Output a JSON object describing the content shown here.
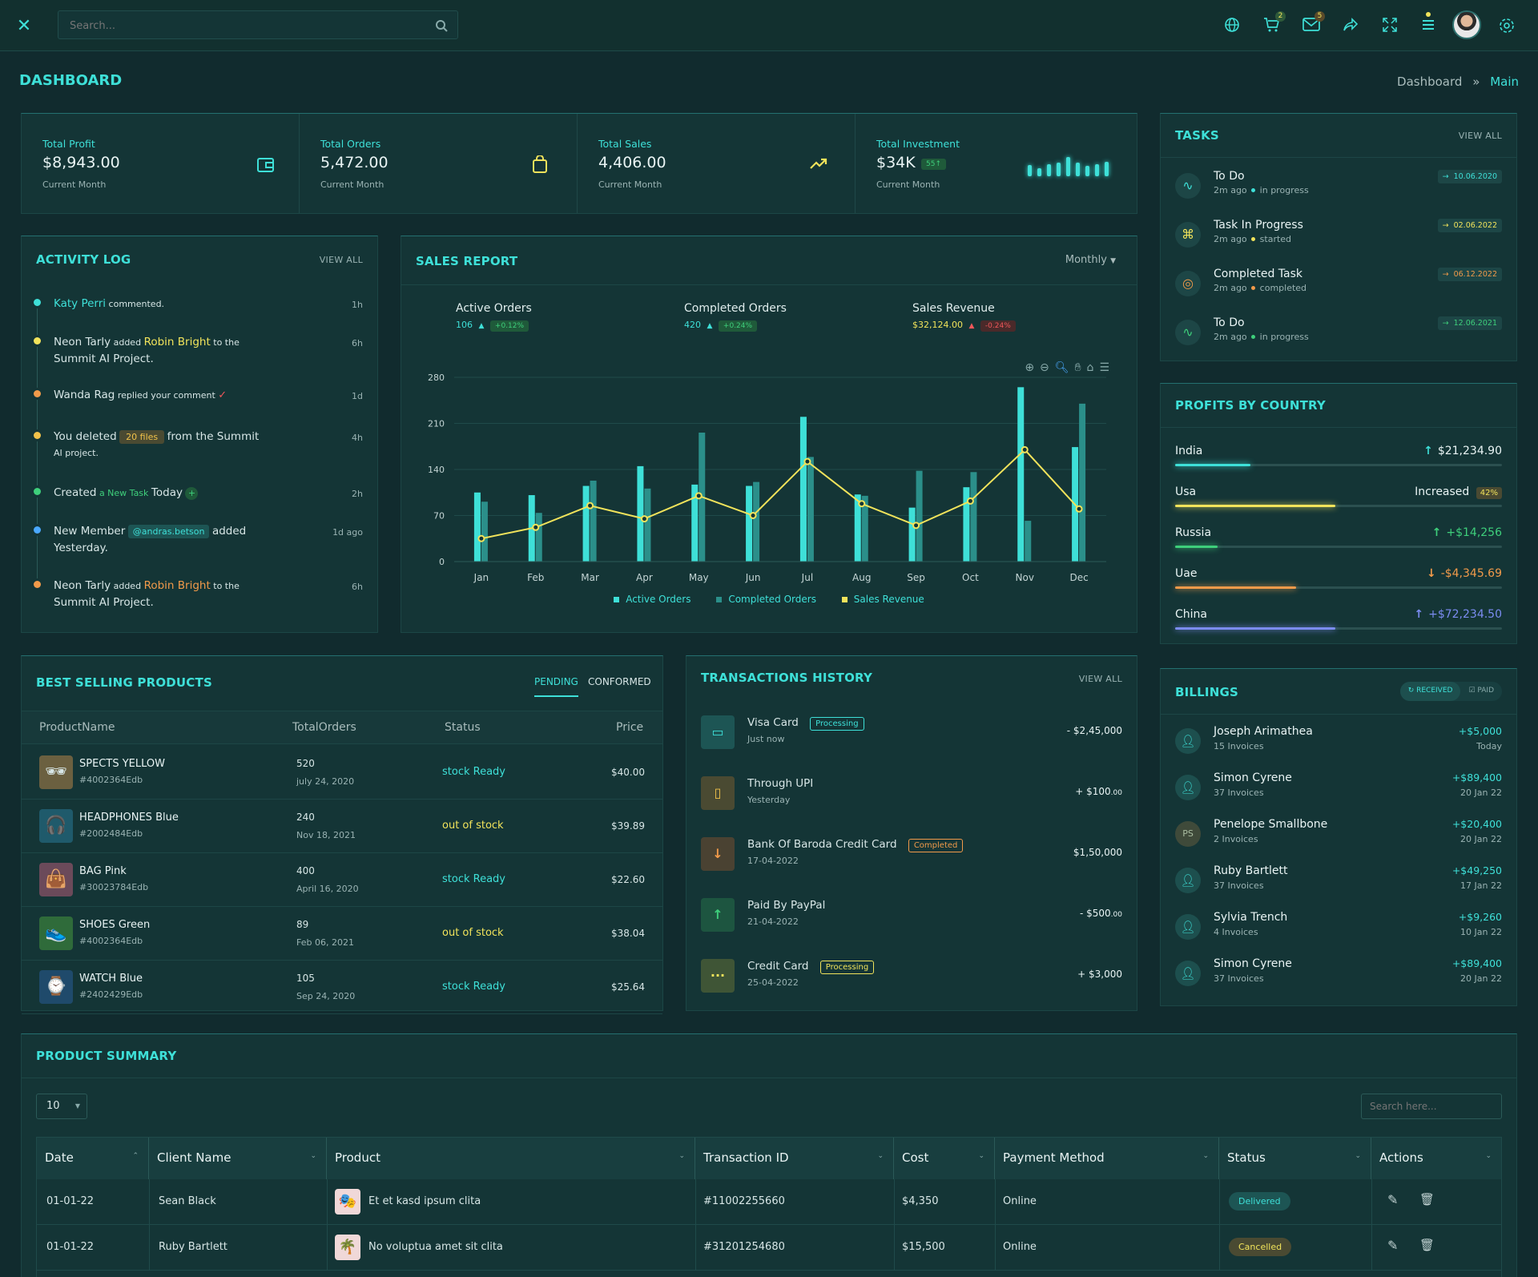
{
  "topbar": {
    "search_placeholder": "Search...",
    "cart_count": "2",
    "mail_count": "5"
  },
  "page": {
    "title": "DASHBOARD",
    "breadcrumb": [
      "Dashboard",
      "Main"
    ]
  },
  "stats": [
    {
      "label": "Total Profit",
      "value": "$8,943.00",
      "sub": "Current Month",
      "icon": "wallet-icon"
    },
    {
      "label": "Total Orders",
      "value": "5,472.00",
      "sub": "Current Month",
      "icon": "shopping-bag-icon"
    },
    {
      "label": "Total Sales",
      "value": "4,406.00",
      "sub": "Current Month",
      "icon": "trending-up-icon"
    },
    {
      "label": "Total Investment",
      "value": "$34K",
      "sub": "Current Month",
      "badge": "55↑",
      "bars": [
        0.5,
        0.35,
        0.55,
        0.6,
        0.85,
        0.6,
        0.45,
        0.55,
        0.65
      ]
    }
  ],
  "activity": {
    "title": "ACTIVITY LOG",
    "view_all": "VIEW ALL",
    "items": [
      {
        "a": "Katy Perri",
        "b": "commented.",
        "time": "1h"
      },
      {
        "a": "Neon Tarly",
        "b": "added",
        "c": "Robin Bright",
        "d": "to the",
        "e": "Summit AI Project.",
        "time": "6h"
      },
      {
        "a": "Wanda Rag",
        "b": "replied your comment",
        "time": "1d"
      },
      {
        "a": "You deleted",
        "files": "20 files",
        "b": "from the Summit",
        "e": "AI project.",
        "time": "4h"
      },
      {
        "a": "Created",
        "b": "a New Task",
        "c": "Today",
        "time": "2h"
      },
      {
        "a": "New Member",
        "tag": "@andras.betson",
        "b": "added",
        "e": "Yesterday.",
        "time": "1d ago"
      },
      {
        "a": "Neon Tarly",
        "b": "added",
        "c": "Robin Bright",
        "d": "to the",
        "e": "Summit AI Project.",
        "time": "6h"
      }
    ]
  },
  "sales": {
    "title": "SALES REPORT",
    "period": "Monthly",
    "metrics": [
      {
        "label": "Active Orders",
        "value": "106",
        "change": "+0.12%"
      },
      {
        "label": "Completed Orders",
        "value": "420",
        "change": "+0.24%"
      },
      {
        "label": "Sales Revenue",
        "value": "$32,124.00",
        "change": "-0.24%"
      }
    ]
  },
  "chart_data": {
    "type": "bar",
    "categories": [
      "Jan",
      "Feb",
      "Mar",
      "Apr",
      "May",
      "Jun",
      "Jul",
      "Aug",
      "Sep",
      "Oct",
      "Nov",
      "Dec"
    ],
    "ylim": [
      0,
      280
    ],
    "yticks": [
      "0",
      "70",
      "140",
      "210",
      "280"
    ],
    "series": [
      {
        "name": "Active Orders",
        "type": "bar",
        "values": [
          105,
          101,
          115,
          145,
          117,
          115,
          220,
          102,
          82,
          113,
          265,
          174
        ]
      },
      {
        "name": "Completed Orders",
        "type": "bar",
        "values": [
          91,
          74,
          123,
          111,
          196,
          121,
          159,
          100,
          138,
          136,
          62,
          240
        ]
      },
      {
        "name": "Sales Revenue",
        "type": "line",
        "values": [
          35,
          52,
          85,
          65,
          100,
          70,
          152,
          88,
          55,
          92,
          170,
          80
        ]
      }
    ]
  },
  "tasks": {
    "title": "TASKS",
    "view_all": "VIEW ALL",
    "items": [
      {
        "name": "To Do",
        "time": "2m ago",
        "status": "in progress",
        "date": "10.06.2020",
        "color": "#3ee0d8",
        "icon": "activity-icon"
      },
      {
        "name": "Task In Progress",
        "time": "2m ago",
        "status": "started",
        "date": "02.06.2022",
        "color": "#f1e35b",
        "icon": "command-icon"
      },
      {
        "name": "Completed Task",
        "time": "2m ago",
        "status": "completed",
        "date": "06.12.2022",
        "color": "#f19a4a",
        "icon": "globe-icon"
      },
      {
        "name": "To Do",
        "time": "2m ago",
        "status": "in progress",
        "date": "12.06.2021",
        "color": "#3ecf7b",
        "icon": "activity-icon"
      }
    ]
  },
  "profits": {
    "title": "PROFITS BY COUNTRY",
    "items": [
      {
        "country": "India",
        "value": "$21,234.90",
        "arrow": "↑",
        "fill": 0.23,
        "color": "#3ee0d8",
        "vcolor": "#e9f4f4"
      },
      {
        "country": "Usa",
        "value": "Increased",
        "badge": "42%",
        "fill": 0.49,
        "color": "#f1e35b",
        "vcolor": "#e9f4f4"
      },
      {
        "country": "Russia",
        "value": "+$14,256",
        "arrow": "↑",
        "fill": 0.13,
        "color": "#3ecf7b",
        "vcolor": "#3ecf7b"
      },
      {
        "country": "Uae",
        "value": "-$4,345.69",
        "arrow": "↓",
        "fill": 0.37,
        "color": "#f19a4a",
        "vcolor": "#f19a4a"
      },
      {
        "country": "China",
        "value": "+$72,234.50",
        "arrow": "↑",
        "fill": 0.49,
        "color": "#7b8cf0",
        "vcolor": "#7b8cf0"
      }
    ]
  },
  "products": {
    "title": "BEST SELLING PRODUCTS",
    "tabs": [
      "PENDING",
      "CONFORMED"
    ],
    "headers": [
      "ProductName",
      "TotalOrders",
      "Status",
      "Price"
    ],
    "rows": [
      {
        "name": "SPECTS YELLOW",
        "sku": "#4002364Edb",
        "orders": "520",
        "date": "july 24, 2020",
        "status": "stock Ready",
        "price": "$40.00",
        "emoji": "🕶",
        "bg": "#6b6040"
      },
      {
        "name": "HEADPHONES Blue",
        "sku": "#2002484Edb",
        "orders": "240",
        "date": "Nov 18, 2021",
        "status": "out of stock",
        "price": "$39.89",
        "emoji": "🎧",
        "bg": "#1f5a6b"
      },
      {
        "name": "BAG Pink",
        "sku": "#30023784Edb",
        "orders": "400",
        "date": "April 16, 2020",
        "status": "stock Ready",
        "price": "$22.60",
        "emoji": "👜",
        "bg": "#6b4a5a"
      },
      {
        "name": "SHOES Green",
        "sku": "#4002364Edb",
        "orders": "89",
        "date": "Feb 06, 2021",
        "status": "out of stock",
        "price": "$38.04",
        "emoji": "👟",
        "bg": "#2f6b3a"
      },
      {
        "name": "WATCH Blue",
        "sku": "#2402429Edb",
        "orders": "105",
        "date": "Sep 24, 2020",
        "status": "stock Ready",
        "price": "$25.64",
        "emoji": "⌚",
        "bg": "#1f4a6b"
      }
    ]
  },
  "transactions": {
    "title": "TRANSACTIONS HISTORY",
    "view_all": "VIEW ALL",
    "items": [
      {
        "name": "Visa Card",
        "badge": "Processing",
        "sub": "Just now",
        "amount": "- $2,45,000",
        "icon": "credit-card-icon",
        "glyph": "▭",
        "color": "#3ee0d8",
        "bg": "#1d5554"
      },
      {
        "name": "Through UPI",
        "sub": "Yesterday",
        "amount": "+ $100",
        "cents": ".00",
        "icon": "smartphone-icon",
        "glyph": "▯",
        "color": "#f1c24a",
        "bg": "#4a4a32"
      },
      {
        "name": "Bank Of Baroda Credit Card",
        "badge": "Completed",
        "sub": "17-04-2022",
        "amount": "$1,50,000",
        "icon": "arrow-down-icon",
        "glyph": "↓",
        "color": "#f19a4a",
        "bg": "#4a4232"
      },
      {
        "name": "Paid By PayPal",
        "sub": "21-04-2022",
        "amount": "- $500",
        "cents": ".00",
        "icon": "arrow-up-icon",
        "glyph": "↑",
        "color": "#3ecf7b",
        "bg": "#1d5540"
      },
      {
        "name": "Credit Card",
        "badge": "Processing",
        "sub": "25-04-2022",
        "amount": "+ $3,000",
        "icon": "more-icon",
        "glyph": "···",
        "color": "#f1e35b",
        "bg": "#3f5536"
      }
    ]
  },
  "billings": {
    "title": "BILLINGS",
    "tabs": [
      "RECEIVED",
      "PAID"
    ],
    "items": [
      {
        "name": "Joseph Arimathea",
        "sub": "15 Invoices",
        "amount": "+$5,000",
        "date": "Today"
      },
      {
        "name": "Simon Cyrene",
        "sub": "37 Invoices",
        "amount": "+$89,400",
        "date": "20 Jan 22"
      },
      {
        "name": "Penelope Smallbone",
        "sub": "2 Invoices",
        "amount": "+$20,400",
        "date": "20 Jan 22",
        "initials": "PS"
      },
      {
        "name": "Ruby Bartlett",
        "sub": "37 Invoices",
        "amount": "+$49,250",
        "date": "17 Jan 22"
      },
      {
        "name": "Sylvia Trench",
        "sub": "4 Invoices",
        "amount": "+$9,260",
        "date": "10 Jan 22"
      },
      {
        "name": "Simon Cyrene",
        "sub": "37 Invoices",
        "amount": "+$89,400",
        "date": "20 Jan 22"
      }
    ]
  },
  "summary": {
    "title": "PRODUCT SUMMARY",
    "page_size": "10",
    "search_placeholder": "Search here...",
    "headers": [
      "Date",
      "Client Name",
      "Product",
      "Transaction ID",
      "Cost",
      "Payment Method",
      "Status",
      "Actions"
    ],
    "rows": [
      {
        "date": "01-01-22",
        "client": "Sean Black",
        "product": "Et et kasd ipsum clita",
        "txn": "#11002255660",
        "cost": "$4,350",
        "method": "Online",
        "status": "Delivered",
        "emoji": "🎭"
      },
      {
        "date": "01-01-22",
        "client": "Ruby Bartlett",
        "product": "No voluptua amet sit clita",
        "txn": "#31201254680",
        "cost": "$15,500",
        "method": "Online",
        "status": "Cancelled",
        "emoji": "🌴"
      }
    ]
  }
}
